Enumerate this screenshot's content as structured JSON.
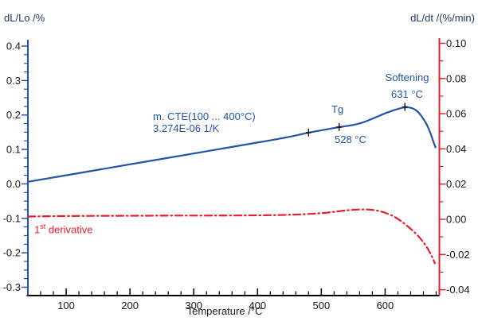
{
  "colors": {
    "curve_blue": "#2154a6",
    "annotation_blue": "#2154a6",
    "title_navy": "#1f3864",
    "derivative_red": "#e4202c",
    "tick_label_black": "#1a1a1a",
    "x_axis_black": "#000000"
  },
  "annotations": {
    "cte_line1": "m. CTE(100 ... 400°C)",
    "cte_line2": "3.274E-06 1/K",
    "tg_label": "Tg",
    "tg_temp": "528 °C",
    "softening_label": "Softening",
    "softening_temp": "631 °C",
    "deriv_prefix": "1",
    "deriv_sup": "st",
    "deriv_rest": " derivative"
  },
  "chart_data": {
    "type": "line",
    "title": "",
    "grid": false,
    "x_axis": {
      "label": "Temperature /°C",
      "min": 40,
      "max": 685,
      "major_ticks": [
        100,
        200,
        300,
        400,
        500,
        600
      ],
      "minor_step": 20,
      "decimals": 0,
      "color": "#000000"
    },
    "left_axis": {
      "label": "dL/Lo /%",
      "min": -0.3,
      "max": 0.4,
      "major_ticks": [
        0.4,
        0.3,
        0.2,
        0.1,
        0.0,
        -0.1,
        -0.2,
        -0.3
      ],
      "minor_step": 0.025,
      "decimals": 1,
      "color": "#2154a6"
    },
    "right_axis": {
      "label": "dL/dt /(%/min)",
      "min": -0.04,
      "max": 0.1,
      "major_ticks": [
        0.1,
        0.08,
        0.06,
        0.04,
        0.02,
        0.0,
        -0.02,
        -0.04
      ],
      "minor_step": 0.01,
      "decimals": 2,
      "color": "#e4202c"
    },
    "series": [
      {
        "name": "dL/Lo expansion curve",
        "axis": "left",
        "color": "#2154a6",
        "style": "solid",
        "points": [
          [
            40,
            0.006
          ],
          [
            100,
            0.025
          ],
          [
            160,
            0.044
          ],
          [
            220,
            0.063
          ],
          [
            280,
            0.082
          ],
          [
            340,
            0.101
          ],
          [
            400,
            0.12
          ],
          [
            450,
            0.136
          ],
          [
            480,
            0.149
          ],
          [
            505,
            0.157
          ],
          [
            528,
            0.165
          ],
          [
            558,
            0.173
          ],
          [
            580,
            0.189
          ],
          [
            600,
            0.205
          ],
          [
            615,
            0.215
          ],
          [
            631,
            0.2235
          ],
          [
            643,
            0.2205
          ],
          [
            652,
            0.209
          ],
          [
            660,
            0.189
          ],
          [
            666,
            0.17
          ],
          [
            671,
            0.148
          ],
          [
            676,
            0.12
          ],
          [
            679,
            0.106
          ]
        ]
      },
      {
        "name": "1st derivative dL/dt",
        "axis": "right",
        "color": "#e4202c",
        "style": "dashdot",
        "points": [
          [
            40,
            0.0016
          ],
          [
            100,
            0.0019
          ],
          [
            180,
            0.002
          ],
          [
            260,
            0.0021
          ],
          [
            340,
            0.0021
          ],
          [
            420,
            0.0023
          ],
          [
            455,
            0.0026
          ],
          [
            485,
            0.0031
          ],
          [
            510,
            0.0038
          ],
          [
            530,
            0.0047
          ],
          [
            545,
            0.0053
          ],
          [
            560,
            0.0056
          ],
          [
            575,
            0.0056
          ],
          [
            588,
            0.005
          ],
          [
            600,
            0.0038
          ],
          [
            612,
            0.002
          ],
          [
            622,
            -0.0002
          ],
          [
            632,
            -0.003
          ],
          [
            642,
            -0.006
          ],
          [
            652,
            -0.0095
          ],
          [
            660,
            -0.013
          ],
          [
            667,
            -0.0168
          ],
          [
            672,
            -0.02
          ],
          [
            676,
            -0.0233
          ],
          [
            678,
            -0.025
          ]
        ]
      }
    ],
    "markers": [
      {
        "t": 480,
        "v": 0.149,
        "meaning": "CTE range mark"
      },
      {
        "t": 528,
        "v": 0.165,
        "meaning": "Tg 528 °C"
      },
      {
        "t": 631,
        "v": 0.2235,
        "meaning": "Softening 631 °C"
      }
    ],
    "results": {
      "mean_cte_range": "100 ... 400°C",
      "mean_cte_value": "3.274E-06 1/K",
      "glass_transition": "528 °C",
      "softening_point": "631 °C"
    }
  }
}
